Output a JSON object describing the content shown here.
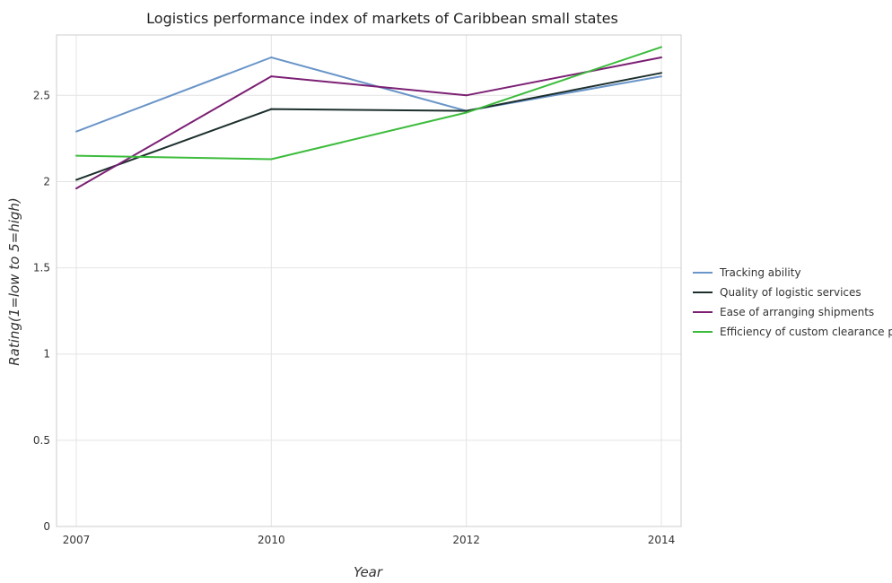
{
  "chart_data": {
    "type": "line",
    "title": "Logistics performance index of markets of Caribbean small states",
    "xlabel": "Year",
    "ylabel": "Rating(1=low to 5=high)",
    "categories": [
      "2007",
      "2010",
      "2012",
      "2014"
    ],
    "ylim": [
      0,
      2.85
    ],
    "yticks": [
      0,
      0.5,
      1,
      1.5,
      2,
      2.5
    ],
    "ytick_labels": [
      "0",
      "0.5",
      "1",
      "1.5",
      "2",
      "2.5"
    ],
    "grid": true,
    "legend_position": "right",
    "series": [
      {
        "name": "Tracking ability",
        "color": "#6a95c8",
        "values": [
          2.29,
          2.72,
          2.41,
          2.61
        ]
      },
      {
        "name": "Quality of logistic services",
        "color": "#1c2f2d",
        "values": [
          2.01,
          2.42,
          2.41,
          2.63
        ]
      },
      {
        "name": "Ease of arranging shipments",
        "color": "#7b1f73",
        "values": [
          1.96,
          2.61,
          2.5,
          2.72
        ]
      },
      {
        "name": "Efficiency of custom clearance process",
        "color": "#3cbc3c",
        "values": [
          2.15,
          2.13,
          2.4,
          2.78
        ]
      }
    ]
  }
}
